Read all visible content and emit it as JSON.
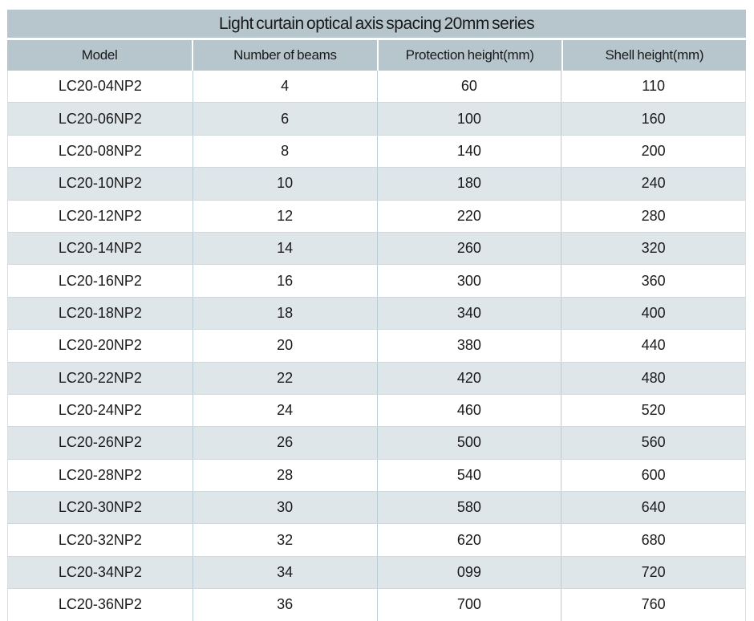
{
  "table": {
    "title": "Light curtain optical axis spacing 20mm series",
    "columns": [
      "Model",
      "Number of beams",
      "Protection height(mm)",
      "Shell height(mm)"
    ],
    "rows": [
      [
        "LC20-04NP2",
        "4",
        "60",
        "110"
      ],
      [
        "LC20-06NP2",
        "6",
        "100",
        "160"
      ],
      [
        "LC20-08NP2",
        "8",
        "140",
        "200"
      ],
      [
        "LC20-10NP2",
        "10",
        "180",
        "240"
      ],
      [
        "LC20-12NP2",
        "12",
        "220",
        "280"
      ],
      [
        "LC20-14NP2",
        "14",
        "260",
        "320"
      ],
      [
        "LC20-16NP2",
        "16",
        "300",
        "360"
      ],
      [
        "LC20-18NP2",
        "18",
        "340",
        "400"
      ],
      [
        "LC20-20NP2",
        "20",
        "380",
        "440"
      ],
      [
        "LC20-22NP2",
        "22",
        "420",
        "480"
      ],
      [
        "LC20-24NP2",
        "24",
        "460",
        "520"
      ],
      [
        "LC20-26NP2",
        "26",
        "500",
        "560"
      ],
      [
        "LC20-28NP2",
        "28",
        "540",
        "600"
      ],
      [
        "LC20-30NP2",
        "30",
        "580",
        "640"
      ],
      [
        "LC20-32NP2",
        "32",
        "620",
        "680"
      ],
      [
        "LC20-34NP2",
        "34",
        "099",
        "720"
      ],
      [
        "LC20-36NP2",
        "36",
        "700",
        "760"
      ]
    ],
    "colors": {
      "header_bg": "#b7c5cd",
      "row_bg": "#ffffff",
      "row_alt_bg": "#dee6ea",
      "cell_border": "#b9cdd5",
      "row_border": "#cfd9dd",
      "text": "#1a1a1a"
    }
  }
}
